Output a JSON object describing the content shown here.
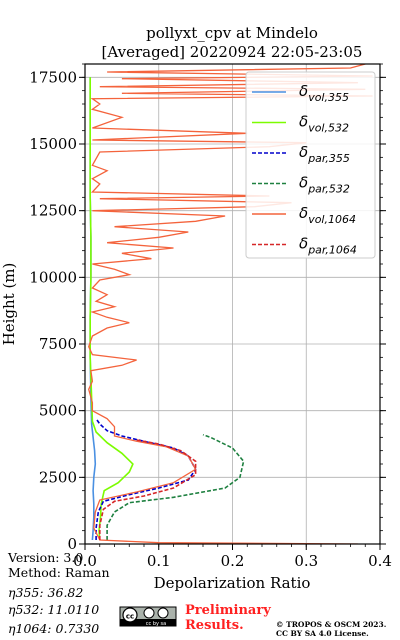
{
  "chart_data": {
    "type": "line",
    "title": "pollyxt_cpv at Mindelo",
    "subtitle": "[Averaged] 20220924 22:05-23:05",
    "xlabel": "Depolarization Ratio",
    "ylabel": "Height (m)",
    "xlim": [
      0,
      0.4
    ],
    "ylim": [
      0,
      18000
    ],
    "xticks": [
      "0.0",
      "0.1",
      "0.2",
      "0.3",
      "0.4"
    ],
    "yticks": [
      "0",
      "2500",
      "5000",
      "7500",
      "10000",
      "12500",
      "15000",
      "17500"
    ],
    "grid": true,
    "legend_placement": "top-right",
    "series": [
      {
        "name": "δvol,355",
        "sub": "vol,355",
        "color": "#4a90e2",
        "dash": "solid",
        "points": [
          [
            0.01,
            150
          ],
          [
            0.011,
            500
          ],
          [
            0.012,
            1000
          ],
          [
            0.012,
            1500
          ],
          [
            0.011,
            2000
          ],
          [
            0.012,
            2500
          ],
          [
            0.014,
            3000
          ],
          [
            0.013,
            3500
          ],
          [
            0.011,
            4000
          ],
          [
            0.009,
            4500
          ],
          [
            0.008,
            5500
          ],
          [
            0.007,
            7000
          ],
          [
            0.007,
            8500
          ],
          [
            0.008,
            10000
          ],
          [
            0.008,
            11500
          ],
          [
            0.007,
            13000
          ],
          [
            0.007,
            14500
          ],
          [
            0.007,
            16000
          ],
          [
            0.007,
            17500
          ]
        ]
      },
      {
        "name": "δvol,532",
        "sub": "vol,532",
        "color": "#7cfc00",
        "dash": "solid",
        "points": [
          [
            0.02,
            150
          ],
          [
            0.019,
            500
          ],
          [
            0.021,
            1000
          ],
          [
            0.022,
            1500
          ],
          [
            0.026,
            2000
          ],
          [
            0.045,
            2300
          ],
          [
            0.06,
            2700
          ],
          [
            0.065,
            3000
          ],
          [
            0.05,
            3400
          ],
          [
            0.03,
            3800
          ],
          [
            0.015,
            4200
          ],
          [
            0.01,
            4600
          ],
          [
            0.009,
            5500
          ],
          [
            0.007,
            7000
          ],
          [
            0.007,
            8500
          ],
          [
            0.008,
            10000
          ],
          [
            0.008,
            11500
          ],
          [
            0.007,
            13000
          ],
          [
            0.007,
            14500
          ],
          [
            0.007,
            16000
          ],
          [
            0.007,
            17500
          ]
        ]
      },
      {
        "name": "δpar,355",
        "sub": "par,355",
        "color": "#0000cc",
        "dash": "dashed",
        "points": [
          [
            0.015,
            150
          ],
          [
            0.015,
            600
          ],
          [
            0.018,
            1200
          ],
          [
            0.025,
            1600
          ],
          [
            0.06,
            1850
          ],
          [
            0.1,
            2100
          ],
          [
            0.14,
            2400
          ],
          [
            0.15,
            2800
          ],
          [
            0.14,
            3300
          ],
          [
            0.12,
            3600
          ],
          [
            0.08,
            3850
          ],
          [
            0.05,
            4050
          ],
          [
            0.03,
            4250
          ],
          [
            0.02,
            4500
          ],
          [
            0.015,
            4700
          ]
        ]
      },
      {
        "name": "δpar,532",
        "sub": "par,532",
        "color": "#1e8040",
        "dash": "dashed",
        "points": [
          [
            0.03,
            150
          ],
          [
            0.03,
            700
          ],
          [
            0.04,
            1200
          ],
          [
            0.06,
            1550
          ],
          [
            0.12,
            1750
          ],
          [
            0.19,
            2100
          ],
          [
            0.21,
            2500
          ],
          [
            0.215,
            3100
          ],
          [
            0.2,
            3600
          ],
          [
            0.17,
            4000
          ],
          [
            0.16,
            4100
          ]
        ]
      },
      {
        "name": "δvol,1064",
        "sub": "vol,1064",
        "color": "#f4633c",
        "dash": "solid",
        "points": [
          [
            0.37,
            0
          ],
          [
            0.1,
            50
          ],
          [
            0.02,
            150
          ],
          [
            0.012,
            600
          ],
          [
            0.014,
            1200
          ],
          [
            0.02,
            1650
          ],
          [
            0.07,
            1950
          ],
          [
            0.12,
            2300
          ],
          [
            0.15,
            2800
          ],
          [
            0.14,
            3300
          ],
          [
            0.11,
            3650
          ],
          [
            0.07,
            3850
          ],
          [
            0.04,
            4050
          ],
          [
            0.04,
            4400
          ],
          [
            0.03,
            4700
          ],
          [
            0.01,
            5000
          ],
          [
            0.01,
            5300
          ],
          [
            0.005,
            5800
          ],
          [
            0.01,
            6100
          ],
          [
            0.008,
            6500
          ],
          [
            0.05,
            6700
          ],
          [
            0.07,
            6900
          ],
          [
            0.01,
            7100
          ],
          [
            0.005,
            7400
          ],
          [
            0.01,
            7800
          ],
          [
            0.03,
            8100
          ],
          [
            0.06,
            8300
          ],
          [
            0.03,
            8500
          ],
          [
            0.01,
            8700
          ],
          [
            0.04,
            8900
          ],
          [
            0.015,
            9100
          ],
          [
            0.03,
            9350
          ],
          [
            0.01,
            9600
          ],
          [
            0.02,
            9900
          ],
          [
            0.06,
            10100
          ],
          [
            0.04,
            10300
          ],
          [
            0.01,
            10500
          ],
          [
            0.09,
            10700
          ],
          [
            0.05,
            10900
          ],
          [
            0.12,
            11100
          ],
          [
            0.03,
            11300
          ],
          [
            0.1,
            11500
          ],
          [
            0.14,
            11700
          ],
          [
            0.04,
            11900
          ],
          [
            0.15,
            12100
          ],
          [
            0.19,
            12300
          ],
          [
            0.01,
            12500
          ],
          [
            0.23,
            12650
          ],
          [
            0.28,
            12800
          ],
          [
            0.02,
            12950
          ],
          [
            0.25,
            13050
          ],
          [
            0.01,
            13200
          ],
          [
            0.02,
            13500
          ],
          [
            0.01,
            13700
          ],
          [
            0.03,
            14000
          ],
          [
            0.01,
            14200
          ],
          [
            0.02,
            14700
          ],
          [
            0.25,
            14900
          ],
          [
            0.3,
            15050
          ],
          [
            0.01,
            15150
          ],
          [
            0.22,
            15400
          ],
          [
            0.01,
            15600
          ],
          [
            0.05,
            16000
          ],
          [
            0.01,
            16300
          ],
          [
            0.02,
            16500
          ],
          [
            0.01,
            16700
          ],
          [
            0.39,
            16800
          ],
          [
            0.05,
            16900
          ],
          [
            0.38,
            17050
          ],
          [
            0.02,
            17150
          ],
          [
            0.37,
            17300
          ],
          [
            0.05,
            17450
          ],
          [
            0.39,
            17550
          ],
          [
            0.03,
            17700
          ],
          [
            0.36,
            17850
          ],
          [
            0.38,
            18000
          ]
        ]
      },
      {
        "name": "δpar,1064",
        "sub": "par,1064",
        "color": "#d62728",
        "dash": "dashed",
        "points": [
          [
            0.02,
            150
          ],
          [
            0.02,
            700
          ],
          [
            0.025,
            1300
          ],
          [
            0.04,
            1600
          ],
          [
            0.08,
            1800
          ],
          [
            0.12,
            2100
          ],
          [
            0.15,
            2600
          ],
          [
            0.15,
            3100
          ],
          [
            0.13,
            3500
          ],
          [
            0.1,
            3750
          ],
          [
            0.07,
            3900
          ]
        ]
      }
    ]
  },
  "footer": {
    "version": "Version: 3.0",
    "method": "Method: Raman",
    "eta355": "η355:  36.82",
    "eta532": "η532: 11.0110",
    "eta1064": "η1064: 0.7330",
    "preliminary_line1": "Preliminary",
    "preliminary_line2": "Results.",
    "copyright_line1": "© TROPOS & OSCM 2023.",
    "copyright_line2": "CC BY SA 4.0 License.",
    "license_badge": "cc by sa"
  }
}
